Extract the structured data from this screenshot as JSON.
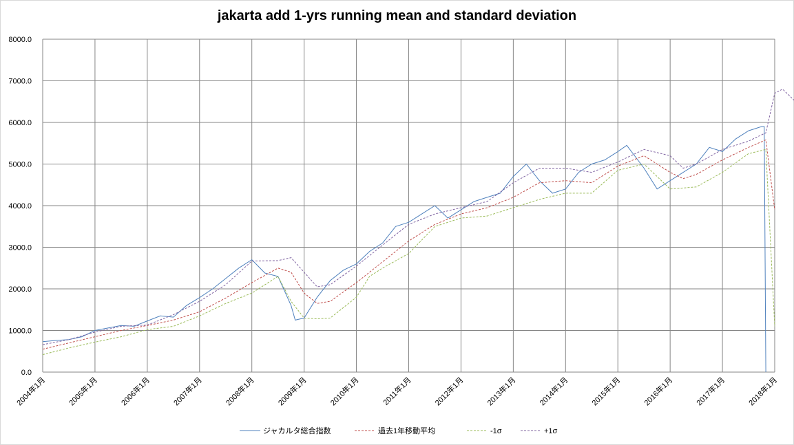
{
  "chart_data": {
    "type": "line",
    "title": "jakarta add 1-yrs running mean and standard deviation",
    "xlabel": "",
    "ylabel": "",
    "ylim": [
      0,
      8000
    ],
    "y_ticks": [
      "0.0",
      "1000.0",
      "2000.0",
      "3000.0",
      "4000.0",
      "5000.0",
      "6000.0",
      "7000.0",
      "8000.0"
    ],
    "x_ticks": [
      "2004年1月",
      "2005年1月",
      "2006年1月",
      "2007年1月",
      "2008年1月",
      "2009年1月",
      "2010年1月",
      "2011年1月",
      "2012年1月",
      "2013年1月",
      "2014年1月",
      "2015年1月",
      "2016年1月",
      "2017年1月",
      "2018年1月"
    ],
    "x_start_year": 2004,
    "x_end_year": 2018,
    "grid": true,
    "legend_position": "bottom",
    "series": [
      {
        "name": "ジャカルタ総合指数",
        "color": "#4f81bd",
        "dash": "",
        "points": [
          [
            2004.0,
            730
          ],
          [
            2004.25,
            760
          ],
          [
            2004.5,
            780
          ],
          [
            2004.75,
            850
          ],
          [
            2005.0,
            1000
          ],
          [
            2005.25,
            1060
          ],
          [
            2005.5,
            1120
          ],
          [
            2005.75,
            1100
          ],
          [
            2006.0,
            1230
          ],
          [
            2006.25,
            1350
          ],
          [
            2006.5,
            1320
          ],
          [
            2006.75,
            1600
          ],
          [
            2007.0,
            1790
          ],
          [
            2007.25,
            2000
          ],
          [
            2007.5,
            2250
          ],
          [
            2007.75,
            2500
          ],
          [
            2008.0,
            2700
          ],
          [
            2008.25,
            2380
          ],
          [
            2008.5,
            2300
          ],
          [
            2008.75,
            1600
          ],
          [
            2008.83,
            1250
          ],
          [
            2009.0,
            1300
          ],
          [
            2009.25,
            1800
          ],
          [
            2009.5,
            2200
          ],
          [
            2009.75,
            2450
          ],
          [
            2010.0,
            2600
          ],
          [
            2010.25,
            2900
          ],
          [
            2010.5,
            3100
          ],
          [
            2010.75,
            3500
          ],
          [
            2011.0,
            3600
          ],
          [
            2011.25,
            3800
          ],
          [
            2011.5,
            4000
          ],
          [
            2011.75,
            3700
          ],
          [
            2012.0,
            3900
          ],
          [
            2012.25,
            4100
          ],
          [
            2012.5,
            4200
          ],
          [
            2012.75,
            4300
          ],
          [
            2013.0,
            4700
          ],
          [
            2013.25,
            5000
          ],
          [
            2013.5,
            4600
          ],
          [
            2013.75,
            4300
          ],
          [
            2014.0,
            4400
          ],
          [
            2014.25,
            4800
          ],
          [
            2014.5,
            5000
          ],
          [
            2014.75,
            5100
          ],
          [
            2015.0,
            5300
          ],
          [
            2015.17,
            5450
          ],
          [
            2015.5,
            4900
          ],
          [
            2015.75,
            4400
          ],
          [
            2016.0,
            4600
          ],
          [
            2016.25,
            4800
          ],
          [
            2016.5,
            5000
          ],
          [
            2016.75,
            5400
          ],
          [
            2017.0,
            5300
          ],
          [
            2017.25,
            5600
          ],
          [
            2017.5,
            5800
          ],
          [
            2017.75,
            5900
          ],
          [
            2017.8,
            5900
          ],
          [
            2017.83,
            0
          ]
        ]
      },
      {
        "name": "過去1年移動平均",
        "color": "#c0504d",
        "dash": "3,2",
        "points": [
          [
            2004.0,
            550
          ],
          [
            2004.5,
            700
          ],
          [
            2005.0,
            850
          ],
          [
            2005.5,
            1000
          ],
          [
            2006.0,
            1120
          ],
          [
            2006.5,
            1250
          ],
          [
            2007.0,
            1450
          ],
          [
            2007.5,
            1780
          ],
          [
            2008.0,
            2150
          ],
          [
            2008.5,
            2500
          ],
          [
            2008.75,
            2400
          ],
          [
            2009.0,
            1900
          ],
          [
            2009.25,
            1650
          ],
          [
            2009.5,
            1700
          ],
          [
            2010.0,
            2150
          ],
          [
            2010.5,
            2650
          ],
          [
            2011.0,
            3150
          ],
          [
            2011.5,
            3550
          ],
          [
            2012.0,
            3800
          ],
          [
            2012.5,
            3950
          ],
          [
            2013.0,
            4200
          ],
          [
            2013.5,
            4550
          ],
          [
            2014.0,
            4600
          ],
          [
            2014.5,
            4550
          ],
          [
            2015.0,
            4950
          ],
          [
            2015.5,
            5200
          ],
          [
            2016.0,
            4800
          ],
          [
            2016.25,
            4650
          ],
          [
            2016.5,
            4750
          ],
          [
            2017.0,
            5100
          ],
          [
            2017.5,
            5400
          ],
          [
            2017.83,
            5580
          ],
          [
            2018.0,
            3900
          ]
        ]
      },
      {
        "name": "-1σ",
        "color": "#9bbb59",
        "dash": "3,2",
        "points": [
          [
            2004.0,
            420
          ],
          [
            2004.5,
            580
          ],
          [
            2005.0,
            720
          ],
          [
            2005.5,
            850
          ],
          [
            2006.0,
            1020
          ],
          [
            2006.5,
            1100
          ],
          [
            2007.0,
            1350
          ],
          [
            2007.5,
            1650
          ],
          [
            2008.0,
            1900
          ],
          [
            2008.5,
            2300
          ],
          [
            2008.75,
            1700
          ],
          [
            2009.0,
            1300
          ],
          [
            2009.25,
            1280
          ],
          [
            2009.5,
            1300
          ],
          [
            2010.0,
            1800
          ],
          [
            2010.25,
            2300
          ],
          [
            2010.5,
            2500
          ],
          [
            2011.0,
            2850
          ],
          [
            2011.5,
            3500
          ],
          [
            2012.0,
            3700
          ],
          [
            2012.5,
            3750
          ],
          [
            2013.0,
            3950
          ],
          [
            2013.5,
            4150
          ],
          [
            2014.0,
            4300
          ],
          [
            2014.5,
            4300
          ],
          [
            2015.0,
            4850
          ],
          [
            2015.5,
            5000
          ],
          [
            2016.0,
            4400
          ],
          [
            2016.5,
            4450
          ],
          [
            2017.0,
            4800
          ],
          [
            2017.5,
            5250
          ],
          [
            2017.83,
            5350
          ],
          [
            2018.0,
            1100
          ]
        ]
      },
      {
        "name": "+1σ",
        "color": "#8064a2",
        "dash": "3,2",
        "points": [
          [
            2004.0,
            660
          ],
          [
            2004.5,
            780
          ],
          [
            2005.0,
            960
          ],
          [
            2005.5,
            1100
          ],
          [
            2006.0,
            1130
          ],
          [
            2006.5,
            1380
          ],
          [
            2007.0,
            1700
          ],
          [
            2007.5,
            2100
          ],
          [
            2008.0,
            2670
          ],
          [
            2008.5,
            2680
          ],
          [
            2008.75,
            2750
          ],
          [
            2009.0,
            2400
          ],
          [
            2009.25,
            2050
          ],
          [
            2009.5,
            2100
          ],
          [
            2010.0,
            2550
          ],
          [
            2010.5,
            3050
          ],
          [
            2011.0,
            3550
          ],
          [
            2011.5,
            3800
          ],
          [
            2012.0,
            3950
          ],
          [
            2012.5,
            4100
          ],
          [
            2013.0,
            4550
          ],
          [
            2013.5,
            4900
          ],
          [
            2014.0,
            4900
          ],
          [
            2014.5,
            4800
          ],
          [
            2015.0,
            5050
          ],
          [
            2015.5,
            5350
          ],
          [
            2016.0,
            5200
          ],
          [
            2016.25,
            4900
          ],
          [
            2016.5,
            5000
          ],
          [
            2017.0,
            5350
          ],
          [
            2017.5,
            5550
          ],
          [
            2017.83,
            5750
          ],
          [
            2018.0,
            6700
          ],
          [
            2018.15,
            6800
          ],
          [
            2018.4,
            6500
          ]
        ]
      }
    ]
  }
}
